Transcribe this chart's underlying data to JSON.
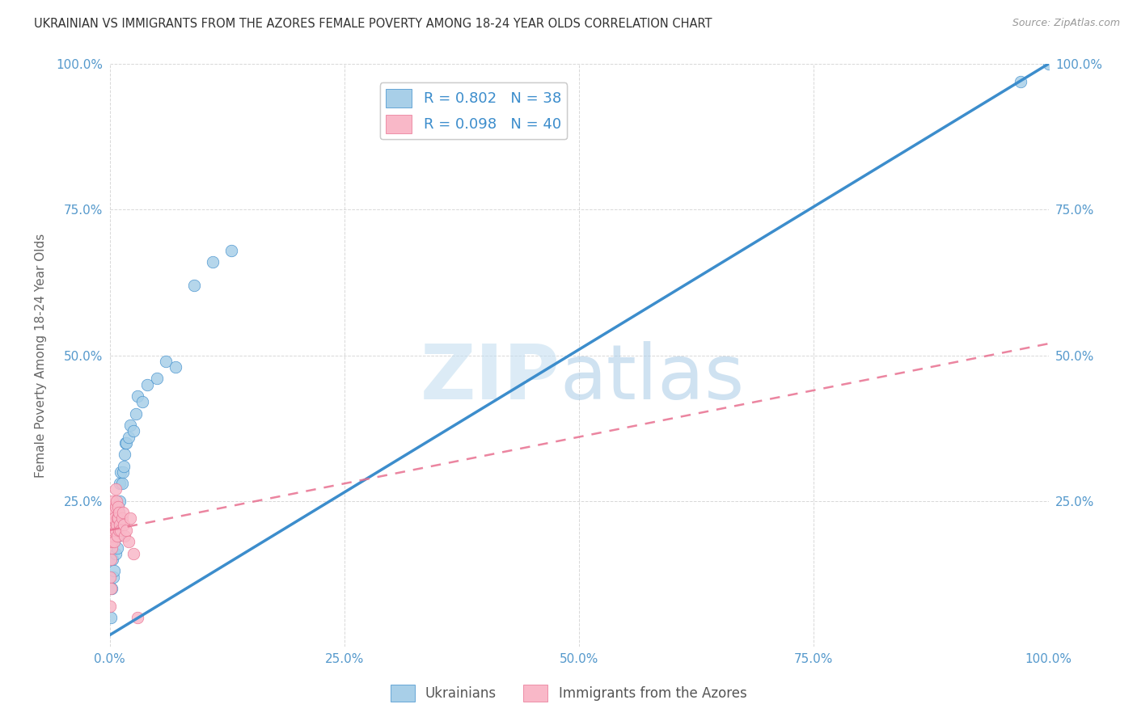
{
  "title": "UKRAINIAN VS IMMIGRANTS FROM THE AZORES FEMALE POVERTY AMONG 18-24 YEAR OLDS CORRELATION CHART",
  "source": "Source: ZipAtlas.com",
  "ylabel": "Female Poverty Among 18-24 Year Olds",
  "xlabel": "",
  "background_color": "#ffffff",
  "grid_color": "#d8d8d8",
  "watermark_zip": "ZIP",
  "watermark_atlas": "atlas",
  "legend_blue_label": "R = 0.802   N = 38",
  "legend_pink_label": "R = 0.098   N = 40",
  "legend_bottom": [
    "Ukrainians",
    "Immigrants from the Azores"
  ],
  "blue_color": "#a8cfe8",
  "pink_color": "#f9b8c8",
  "blue_line_color": "#3c8dcc",
  "pink_line_color": "#e87090",
  "axis_color": "#5599cc",
  "title_color": "#333333",
  "blue_scatter_x": [
    0.001,
    0.002,
    0.003,
    0.004,
    0.005,
    0.005,
    0.006,
    0.007,
    0.008,
    0.008,
    0.009,
    0.009,
    0.01,
    0.01,
    0.011,
    0.011,
    0.012,
    0.013,
    0.014,
    0.015,
    0.016,
    0.017,
    0.018,
    0.02,
    0.022,
    0.025,
    0.028,
    0.03,
    0.035,
    0.04,
    0.05,
    0.06,
    0.07,
    0.09,
    0.11,
    0.13,
    0.97,
    1.0
  ],
  "blue_scatter_y": [
    0.05,
    0.1,
    0.15,
    0.12,
    0.13,
    0.18,
    0.16,
    0.2,
    0.22,
    0.17,
    0.24,
    0.19,
    0.23,
    0.21,
    0.28,
    0.25,
    0.3,
    0.28,
    0.3,
    0.31,
    0.33,
    0.35,
    0.35,
    0.36,
    0.38,
    0.37,
    0.4,
    0.43,
    0.42,
    0.45,
    0.46,
    0.49,
    0.48,
    0.62,
    0.66,
    0.68,
    0.97,
    1.0
  ],
  "pink_scatter_x": [
    0.0,
    0.0,
    0.0,
    0.001,
    0.001,
    0.001,
    0.001,
    0.002,
    0.002,
    0.002,
    0.002,
    0.003,
    0.003,
    0.003,
    0.004,
    0.004,
    0.005,
    0.005,
    0.006,
    0.006,
    0.006,
    0.007,
    0.007,
    0.008,
    0.008,
    0.009,
    0.009,
    0.01,
    0.01,
    0.011,
    0.012,
    0.013,
    0.014,
    0.015,
    0.016,
    0.018,
    0.02,
    0.022,
    0.025,
    0.03
  ],
  "pink_scatter_y": [
    0.07,
    0.12,
    0.18,
    0.1,
    0.15,
    0.2,
    0.23,
    0.17,
    0.21,
    0.24,
    0.18,
    0.22,
    0.25,
    0.19,
    0.23,
    0.2,
    0.18,
    0.22,
    0.2,
    0.24,
    0.27,
    0.21,
    0.25,
    0.22,
    0.19,
    0.24,
    0.22,
    0.2,
    0.23,
    0.21,
    0.2,
    0.22,
    0.23,
    0.21,
    0.19,
    0.2,
    0.18,
    0.22,
    0.16,
    0.05
  ],
  "blue_line_x0": 0.0,
  "blue_line_x1": 1.0,
  "blue_line_y0": 0.02,
  "blue_line_y1": 1.0,
  "pink_line_x0": 0.0,
  "pink_line_x1": 1.0,
  "pink_line_y0": 0.2,
  "pink_line_y1": 0.52,
  "xlim": [
    0.0,
    1.0
  ],
  "ylim": [
    0.0,
    1.0
  ],
  "xtick_labels": [
    "0.0%",
    "25.0%",
    "50.0%",
    "75.0%",
    "100.0%"
  ],
  "xtick_vals": [
    0.0,
    0.25,
    0.5,
    0.75,
    1.0
  ],
  "ytick_labels": [
    "",
    "25.0%",
    "50.0%",
    "75.0%",
    "100.0%"
  ],
  "ytick_vals": [
    0.0,
    0.25,
    0.5,
    0.75,
    1.0
  ],
  "right_ytick_labels": [
    "100.0%",
    "75.0%",
    "50.0%",
    "25.0%"
  ],
  "right_ytick_vals": [
    1.0,
    0.75,
    0.5,
    0.25
  ]
}
